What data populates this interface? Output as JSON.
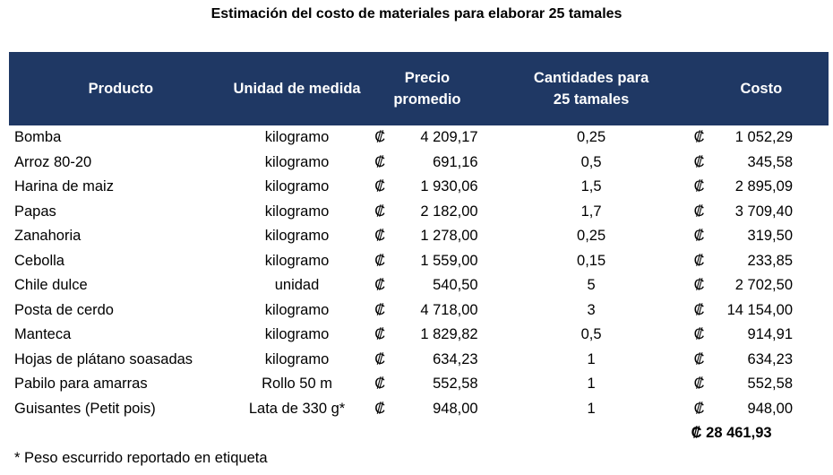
{
  "title": "Estimación del costo de materiales para elaborar 25 tamales",
  "currency_symbol": "₡",
  "headers": [
    "Producto",
    "Unidad de medida",
    "Precio promedio",
    "Cantidades para 25 tamales",
    "Costo"
  ],
  "rows": [
    [
      "Bomba",
      "kilogramo",
      "4 209,17",
      "0,25",
      "1 052,29"
    ],
    [
      "Arroz 80-20",
      "kilogramo",
      "691,16",
      "0,5",
      "345,58"
    ],
    [
      "Harina de maiz",
      "kilogramo",
      "1 930,06",
      "1,5",
      "2 895,09"
    ],
    [
      "Papas",
      "kilogramo",
      "2 182,00",
      "1,7",
      "3 709,40"
    ],
    [
      "Zanahoria",
      "kilogramo",
      "1 278,00",
      "0,25",
      "319,50"
    ],
    [
      "Cebolla",
      "kilogramo",
      "1 559,00",
      "0,15",
      "233,85"
    ],
    [
      "Chile dulce",
      "unidad",
      "540,50",
      "5",
      "2 702,50"
    ],
    [
      "Posta de cerdo",
      "kilogramo",
      "4 718,00",
      "3",
      "14 154,00"
    ],
    [
      "Manteca",
      "kilogramo",
      "1 829,82",
      "0,5",
      "914,91"
    ],
    [
      "Hojas de plátano soasadas",
      "kilogramo",
      "634,23",
      "1",
      "634,23"
    ],
    [
      "Pabilo para amarras",
      "Rollo 50 m",
      "552,58",
      "1",
      "552,58"
    ],
    [
      "Guisantes (Petit pois)",
      "Lata de  330 g*",
      "948,00",
      "1",
      "948,00"
    ]
  ],
  "total": "₡ 28 461,93",
  "footnote": "* Peso escurrido reportado en etiqueta",
  "colors": {
    "header_bg": "#1f3864",
    "header_text": "#ffffff"
  }
}
